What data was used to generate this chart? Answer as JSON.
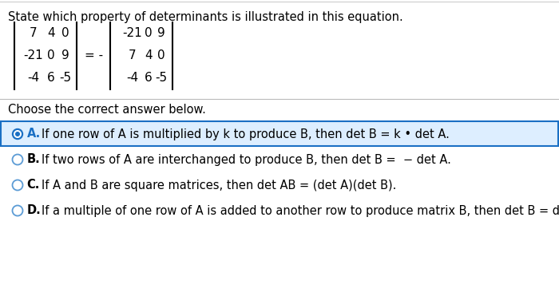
{
  "title": "State which property of determinants is illustrated in this equation.",
  "matrix_left": [
    [
      "7",
      "4",
      "0"
    ],
    [
      "-21",
      "0",
      "9"
    ],
    [
      "-4",
      "6",
      "-5"
    ]
  ],
  "matrix_right": [
    [
      "-21",
      "0",
      "9"
    ],
    [
      "7",
      "4",
      "0"
    ],
    [
      "-4",
      "6",
      "-5"
    ]
  ],
  "equals_sign": "= -",
  "question_label": "Choose the correct answer below.",
  "options": [
    {
      "label": "A.",
      "text": "If one row of A is multiplied by k to produce B, then det B = k • det A.",
      "selected": true
    },
    {
      "label": "B.",
      "text": "If two rows of A are interchanged to produce B, then det B =  − det A.",
      "selected": false
    },
    {
      "label": "C.",
      "text": "If A and B are square matrices, then det AB = (det A)(det B).",
      "selected": false
    },
    {
      "label": "D.",
      "text": "If a multiple of one row of A is added to another row to produce matrix B, then det B = det A.",
      "selected": false
    }
  ],
  "bg_color": "#ffffff",
  "text_color": "#000000",
  "selected_color": "#1a6fc4",
  "option_bg_selected": "#ddeeff",
  "border_color": "#1a6fc4",
  "separator_color": "#bbbbbb",
  "radio_unselected": "#5b9bd5",
  "title_line_color": "#cccccc",
  "top_line_color": "#cccccc"
}
